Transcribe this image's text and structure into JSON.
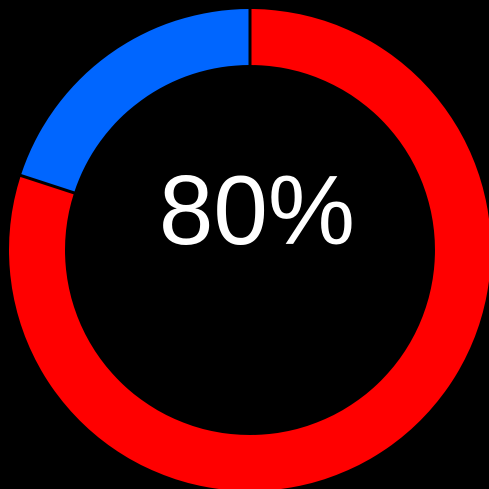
{
  "chart_data": {
    "type": "pie",
    "variant": "donut",
    "title": "",
    "center_label": "80%",
    "slices": [
      {
        "label": "",
        "value": 80,
        "color": "#ff0000"
      },
      {
        "label": "",
        "value": 20,
        "color": "#0066ff"
      }
    ],
    "start": "top",
    "direction": "clockwise",
    "separator_color": "#000000",
    "background": "#000000",
    "text_color": "#ffffff"
  }
}
